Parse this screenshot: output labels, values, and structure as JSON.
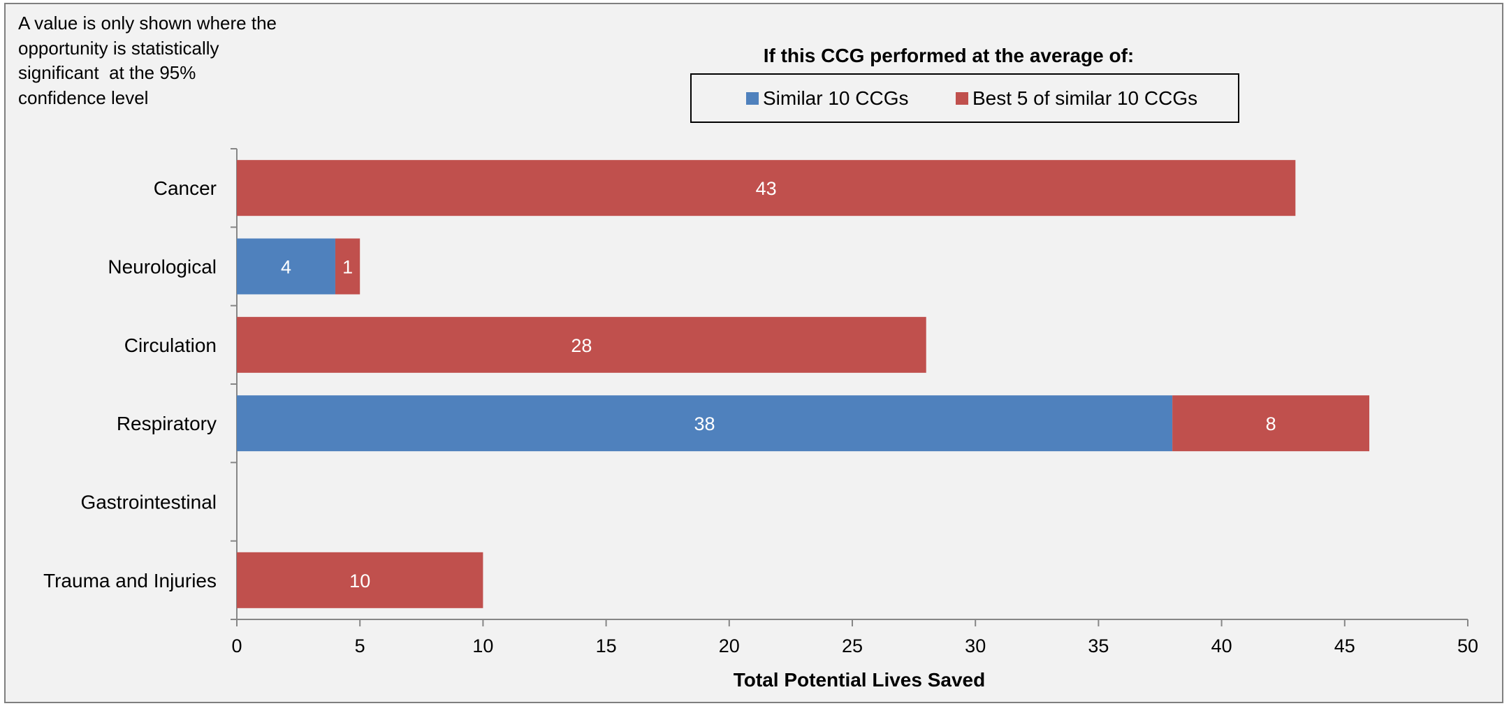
{
  "note": "A value is only shown where the opportunity is statistically significant  at the 95% confidence level",
  "chart_data": {
    "type": "bar",
    "orientation": "horizontal",
    "stacked": true,
    "categories": [
      "Cancer",
      "Neurological",
      "Circulation",
      "Respiratory",
      "Gastrointestinal",
      "Trauma and Injuries"
    ],
    "legend_title": "If this CCG performed at the average of:",
    "series": [
      {
        "name": "Similar 10 CCGs",
        "color": "#4f81bd",
        "values": [
          null,
          4,
          null,
          38,
          null,
          null
        ],
        "labels": [
          "",
          "4",
          "",
          "38",
          "",
          ""
        ]
      },
      {
        "name": "Best 5 of similar 10 CCGs",
        "color": "#c0504d",
        "values": [
          43,
          1,
          28,
          8,
          null,
          10
        ],
        "labels": [
          "43",
          "1",
          "28",
          "8",
          "",
          "10"
        ]
      }
    ],
    "xlabel": "Total Potential Lives Saved",
    "ylabel": "",
    "xlim": [
      0,
      50
    ],
    "xticks": [
      "0",
      "5",
      "10",
      "15",
      "20",
      "25",
      "30",
      "35",
      "40",
      "45",
      "50"
    ],
    "grid": false,
    "legend_position": "top-center"
  }
}
